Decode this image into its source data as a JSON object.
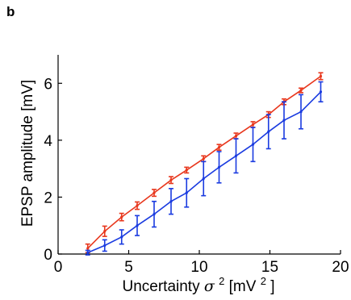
{
  "panel_label": "b",
  "chart_data": {
    "type": "line",
    "title": "",
    "ylabel": "EPSP amplitude [mV]",
    "xlabel": {
      "prefix": "Uncertainty ",
      "symbol": "σ",
      "superscript": "2",
      "unit_open": " [mV",
      "unit_sup": "2",
      "unit_close": "]"
    },
    "xlim": [
      0,
      20
    ],
    "ylim": [
      0,
      7
    ],
    "xticks": [
      0,
      5,
      10,
      15,
      20
    ],
    "yticks": [
      0,
      2,
      4,
      6
    ],
    "grid": false,
    "series": [
      {
        "color": "#e8371d",
        "x": [
          2.1,
          3.3,
          4.5,
          5.6,
          6.8,
          8.0,
          9.1,
          10.3,
          11.4,
          12.6,
          13.8,
          14.9,
          16.0,
          17.2,
          18.6
        ],
        "y": [
          0.2,
          0.8,
          1.3,
          1.7,
          2.15,
          2.6,
          2.95,
          3.35,
          3.75,
          4.15,
          4.55,
          4.9,
          5.35,
          5.75,
          6.25
        ],
        "err": [
          0.15,
          0.18,
          0.13,
          0.13,
          0.12,
          0.12,
          0.1,
          0.1,
          0.1,
          0.1,
          0.1,
          0.1,
          0.1,
          0.08,
          0.12
        ]
      },
      {
        "color": "#1a3be0",
        "x": [
          2.1,
          3.3,
          4.5,
          5.6,
          6.8,
          8.0,
          9.1,
          10.3,
          11.4,
          12.6,
          13.8,
          14.9,
          16.0,
          17.2,
          18.6
        ],
        "y": [
          0.05,
          0.3,
          0.6,
          1.0,
          1.4,
          1.85,
          2.15,
          2.65,
          3.05,
          3.45,
          3.85,
          4.3,
          4.7,
          5.0,
          5.7
        ],
        "err": [
          0.08,
          0.2,
          0.25,
          0.35,
          0.45,
          0.45,
          0.5,
          0.6,
          0.55,
          0.6,
          0.6,
          0.6,
          0.65,
          0.6,
          0.35
        ]
      }
    ]
  }
}
